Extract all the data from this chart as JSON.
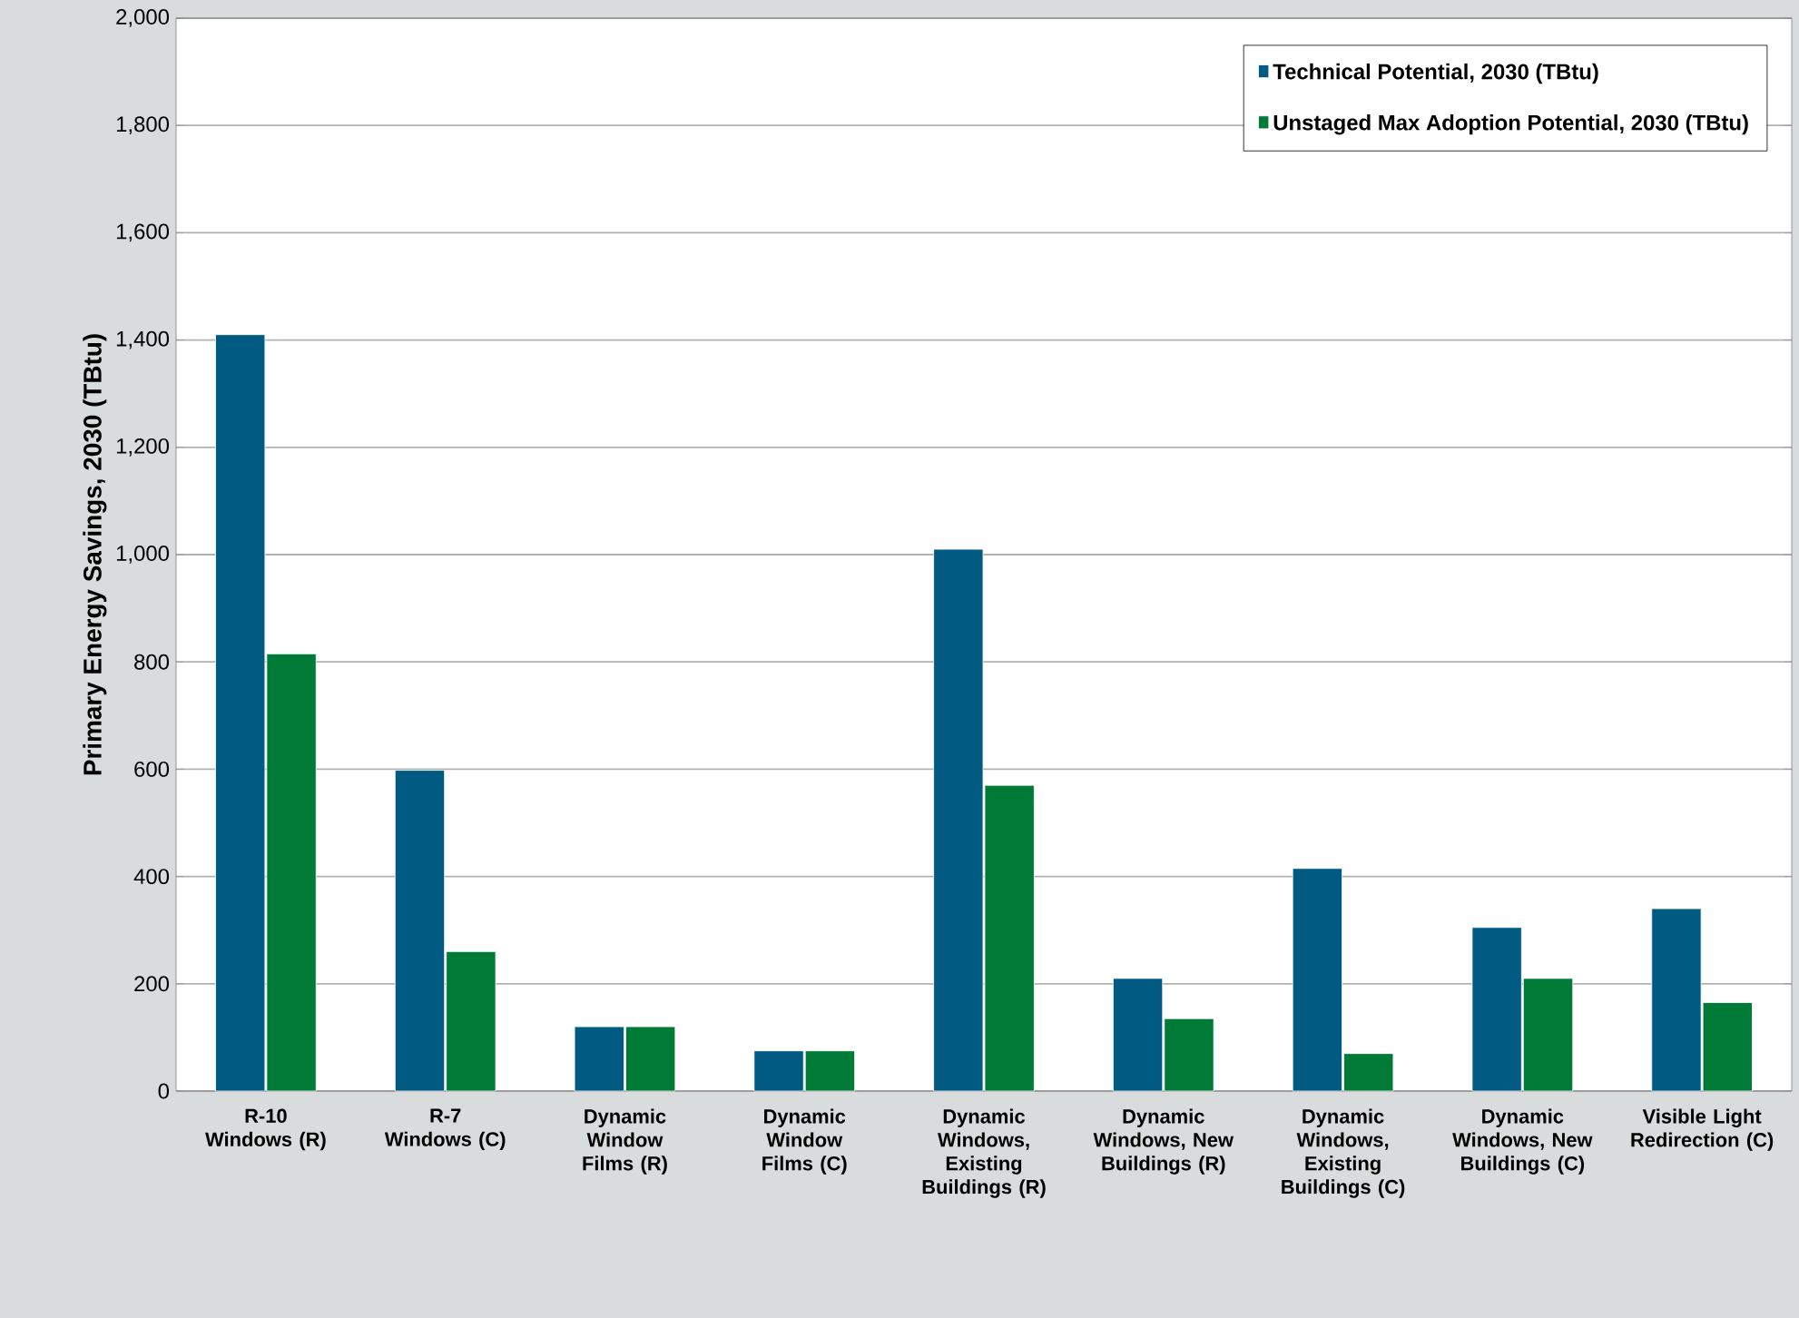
{
  "chart_data": {
    "type": "bar",
    "ylabel": "Primary Energy Savings, 2030 (TBtu)",
    "categories": [
      "R-10 Windows (R)",
      "R-7 Windows (C)",
      "Dynamic Window Films (R)",
      "Dynamic Window Films (C)",
      "Dynamic Windows, Existing Buildings (R)",
      "Dynamic Windows, New Buildings (R)",
      "Dynamic Windows, Existing Buildings (C)",
      "Dynamic Windows, New Buildings (C)",
      "Visible Light Redirection (C)"
    ],
    "series": [
      {
        "name": "Technical Potential, 2030 (TBtu)",
        "color": "#005a82",
        "values": [
          1410,
          598,
          120,
          75,
          1010,
          210,
          415,
          305,
          340
        ]
      },
      {
        "name": "Unstaged Max Adoption Potential, 2030 (TBtu)",
        "color": "#007a37",
        "values": [
          815,
          260,
          120,
          75,
          570,
          135,
          70,
          210,
          165
        ]
      }
    ],
    "ylim": [
      0,
      2000
    ],
    "yticks": [
      0,
      {
        "value": 200,
        "label": "200"
      },
      {
        "value": 400,
        "label": "400"
      },
      {
        "value": 600,
        "label": "600"
      },
      {
        "value": 800,
        "label": "800"
      },
      {
        "value": 1000,
        "label": "1,000"
      },
      {
        "value": 1200,
        "label": "1,200"
      },
      {
        "value": 1400,
        "label": "1,400"
      },
      {
        "value": 1600,
        "label": "1,600"
      },
      {
        "value": 1800,
        "label": "1,800"
      },
      {
        "value": 2000,
        "label": "2,000"
      }
    ],
    "grid": "y",
    "legend": "top right"
  }
}
